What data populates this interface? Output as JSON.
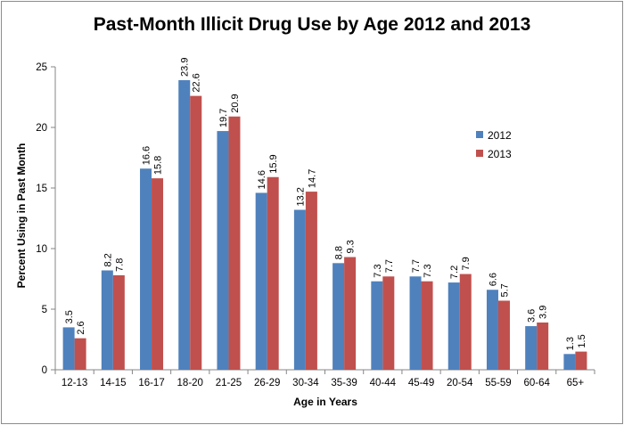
{
  "chart_data": {
    "type": "bar",
    "title": "Past-Month Illicit Drug Use by Age 2012 and 2013",
    "xlabel": "Age in Years",
    "ylabel": "Percent Using in Past Month",
    "ylim": [
      0,
      25
    ],
    "yticks": [
      0,
      5,
      10,
      15,
      20,
      25
    ],
    "grid": false,
    "legend_position": "right",
    "categories": [
      "12-13",
      "14-15",
      "16-17",
      "18-20",
      "21-25",
      "26-29",
      "30-34",
      "35-39",
      "40-44",
      "45-49",
      "20-54",
      "55-59",
      "60-64",
      "65+"
    ],
    "series": [
      {
        "name": "2012",
        "color": "#4f81bd",
        "values": [
          3.5,
          8.2,
          16.6,
          23.9,
          19.7,
          14.6,
          13.2,
          8.8,
          7.3,
          7.7,
          7.2,
          6.6,
          3.6,
          1.3
        ]
      },
      {
        "name": "2013",
        "color": "#c0504d",
        "values": [
          2.6,
          7.8,
          15.8,
          22.6,
          20.9,
          15.9,
          14.7,
          9.3,
          7.7,
          7.3,
          7.9,
          5.7,
          3.9,
          1.5
        ]
      }
    ]
  }
}
